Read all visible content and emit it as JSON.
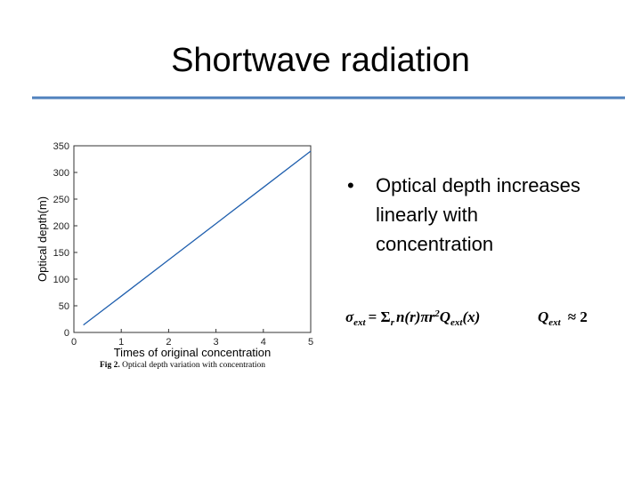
{
  "slide": {
    "title": "Shortwave radiation",
    "bullet_lines": [
      "Optical depth increases",
      "linearly with",
      "concentration"
    ],
    "bullet_marker": "•",
    "formula_left": {
      "lhs": "σ",
      "lhs_sub": "ext",
      "eq": "= Σ",
      "sum_sub": "r",
      "body": "n(r)πr",
      "sup": "2",
      "q": "Q",
      "q_sub": "ext",
      "arg": "(x)"
    },
    "formula_right": {
      "q": "Q",
      "q_sub": "ext",
      "rhs": "≈ 2"
    },
    "caption_label": "Fig 2.",
    "caption_text": "Optical depth variation with concentration"
  },
  "chart_data": {
    "type": "line",
    "x_label": "Times of original concentration",
    "y_label": "Optical depth(m)",
    "x": [
      0.2,
      1,
      2,
      3,
      4,
      5
    ],
    "series": [
      {
        "name": "Optical depth",
        "color": "#1f5fae",
        "values": [
          14,
          68,
          136,
          204,
          272,
          340
        ]
      }
    ],
    "xlim": [
      0,
      5
    ],
    "ylim": [
      0,
      350
    ],
    "xticks": [
      0,
      1,
      2,
      3,
      4,
      5
    ],
    "yticks": [
      0,
      50,
      100,
      150,
      200,
      250,
      300,
      350
    ],
    "grid": false
  }
}
